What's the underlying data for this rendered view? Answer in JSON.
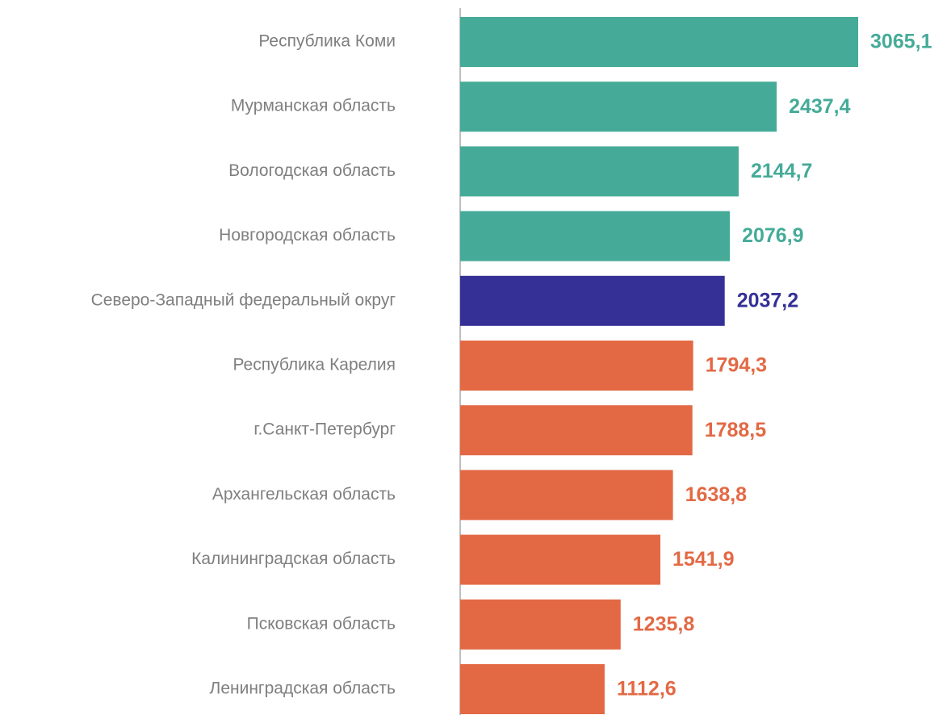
{
  "chart_data": {
    "type": "hbar",
    "categories": [
      "Республика Коми",
      "Мурманская область",
      "Вологодская область",
      "Новгородская область",
      "Северо-Западный федеральный округ",
      "Республика Карелия",
      "г.Санкт-Петербург",
      "Архангельская область",
      "Калининградская область",
      "Псковская область",
      "Ленинградская область"
    ],
    "values": [
      3065.1,
      2437.4,
      2144.7,
      2076.9,
      2037.2,
      1794.3,
      1788.5,
      1638.8,
      1541.9,
      1235.8,
      1112.6
    ],
    "value_labels": [
      "3065,1",
      "2437,4",
      "2144,7",
      "2076,9",
      "2037,2",
      "1794,3",
      "1788,5",
      "1638,8",
      "1541,9",
      "1235,8",
      "1112,6"
    ],
    "colors": [
      "#45ab98",
      "#45ab98",
      "#45ab98",
      "#45ab98",
      "#353096",
      "#e36944",
      "#e36944",
      "#e36944",
      "#e36944",
      "#e36944",
      "#e36944"
    ],
    "xlim": [
      0,
      3500
    ]
  }
}
